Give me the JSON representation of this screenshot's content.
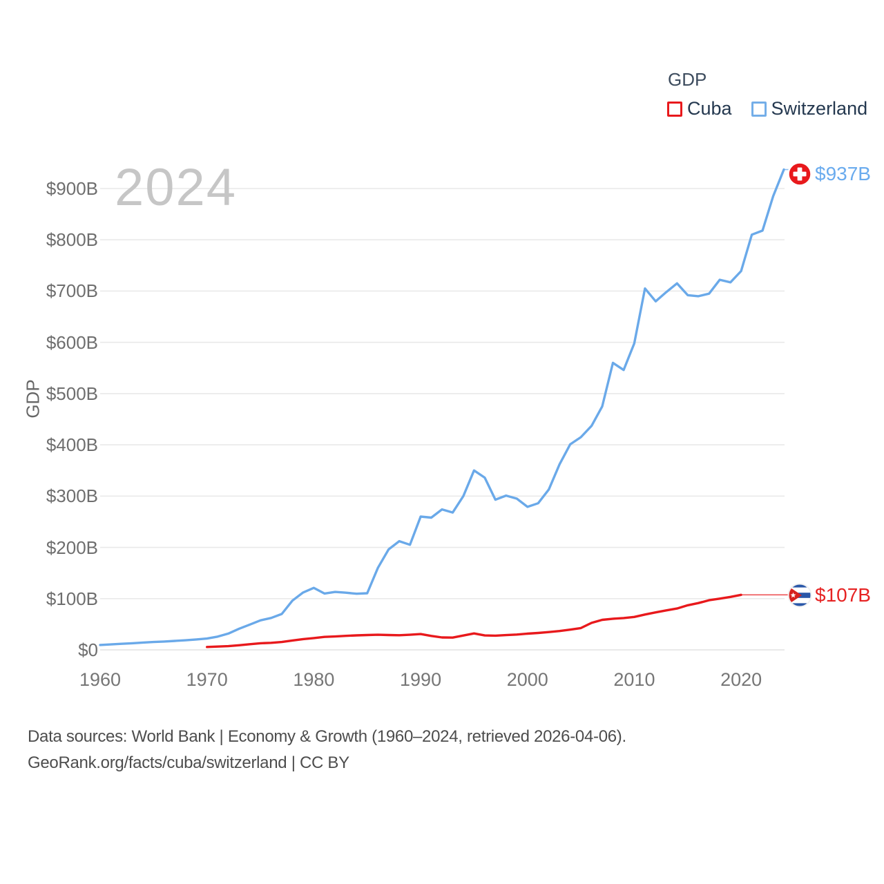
{
  "legend": {
    "title": "GDP",
    "items": [
      {
        "label": "Cuba",
        "color": "#e8191c"
      },
      {
        "label": "Switzerland",
        "color": "#74aee8"
      }
    ]
  },
  "watermark_year": "2024",
  "y_axis": {
    "title": "GDP",
    "tick_labels": [
      "$0",
      "$100B",
      "$200B",
      "$300B",
      "$400B",
      "$500B",
      "$600B",
      "$700B",
      "$800B",
      "$900B"
    ]
  },
  "x_axis": {
    "tick_labels": [
      "1960",
      "1970",
      "1980",
      "1990",
      "2000",
      "2010",
      "2020"
    ]
  },
  "annotations": {
    "switzerland_end_label": "$937B",
    "cuba_end_label": "$107B"
  },
  "footer": {
    "line1": "Data sources: World Bank | Economy & Growth (1960–2024, retrieved 2026-04-06).",
    "line2": "GeoRank.org/facts/cuba/switzerland | CC BY"
  },
  "chart_data": {
    "type": "line",
    "title": "GDP",
    "ylabel": "GDP",
    "xlabel": "",
    "units": "billions USD",
    "x_range": [
      1960,
      2024
    ],
    "ylim": [
      0,
      950
    ],
    "y_ticks_billions": [
      0,
      100,
      200,
      300,
      400,
      500,
      600,
      700,
      800,
      900
    ],
    "x_ticks_years": [
      1960,
      1970,
      1980,
      1990,
      2000,
      2010,
      2020
    ],
    "grid": "horizontal",
    "legend_position": "top-right",
    "series": [
      {
        "name": "Switzerland",
        "color": "#6aa9e9",
        "end_label": "$937B",
        "years": [
          1960,
          1961,
          1962,
          1963,
          1964,
          1965,
          1966,
          1967,
          1968,
          1969,
          1970,
          1971,
          1972,
          1973,
          1974,
          1975,
          1976,
          1977,
          1978,
          1979,
          1980,
          1981,
          1982,
          1983,
          1984,
          1985,
          1986,
          1987,
          1988,
          1989,
          1990,
          1991,
          1992,
          1993,
          1994,
          1995,
          1996,
          1997,
          1998,
          1999,
          2000,
          2001,
          2002,
          2003,
          2004,
          2005,
          2006,
          2007,
          2008,
          2009,
          2010,
          2011,
          2012,
          2013,
          2014,
          2015,
          2016,
          2017,
          2018,
          2019,
          2020,
          2021,
          2022,
          2023,
          2024
        ],
        "values_billion_usd": [
          9.5,
          10.7,
          11.9,
          12.9,
          14.3,
          15.3,
          16.3,
          17.5,
          18.7,
          20.4,
          22.1,
          25.9,
          31.8,
          41.2,
          49.3,
          57.5,
          62.2,
          70.0,
          96.0,
          112.0,
          121.0,
          110.0,
          113.0,
          111.5,
          109.5,
          110.5,
          160.0,
          196.0,
          212.0,
          205.0,
          260.0,
          258.0,
          274.0,
          268.0,
          300.0,
          350.0,
          336.0,
          293.0,
          301.0,
          295.0,
          279.0,
          286.0,
          313.0,
          362.0,
          401.0,
          415.0,
          437.0,
          475.0,
          560.0,
          546.0,
          598.0,
          705.0,
          680.0,
          698.0,
          715.0,
          692.0,
          690.0,
          695.0,
          722.0,
          717.0,
          739.0,
          810.0,
          818.0,
          885.0,
          937.0
        ]
      },
      {
        "name": "Cuba",
        "color": "#e8191c",
        "end_label": "$107B",
        "years": [
          1970,
          1971,
          1972,
          1973,
          1974,
          1975,
          1976,
          1977,
          1978,
          1979,
          1980,
          1981,
          1982,
          1983,
          1984,
          1985,
          1986,
          1987,
          1988,
          1989,
          1990,
          1991,
          1992,
          1993,
          1994,
          1995,
          1996,
          1997,
          1998,
          1999,
          2000,
          2001,
          2002,
          2003,
          2004,
          2005,
          2006,
          2007,
          2008,
          2009,
          2010,
          2011,
          2012,
          2013,
          2014,
          2015,
          2016,
          2017,
          2018,
          2019,
          2020
        ],
        "values_billion_usd": [
          5.7,
          6.4,
          7.3,
          9.0,
          11.0,
          13.0,
          13.8,
          15.3,
          18.3,
          21.0,
          23.0,
          25.3,
          26.1,
          27.3,
          28.3,
          28.9,
          29.5,
          29.0,
          28.5,
          29.5,
          30.9,
          27.2,
          24.2,
          24.0,
          28.0,
          32.0,
          28.2,
          27.8,
          28.8,
          29.9,
          31.7,
          33.0,
          34.7,
          36.8,
          39.5,
          42.6,
          52.7,
          58.6,
          60.8,
          62.1,
          64.3,
          69.0,
          73.1,
          77.1,
          80.7,
          87.1,
          91.4,
          96.9,
          100.0,
          103.4,
          107.4
        ]
      }
    ]
  },
  "colors": {
    "switzerland_line": "#6aa9e9",
    "cuba_line": "#e8191c",
    "gridline": "#e9e9e9",
    "tick_text": "#6e6e6e",
    "watermark": "#c6c6c6"
  }
}
